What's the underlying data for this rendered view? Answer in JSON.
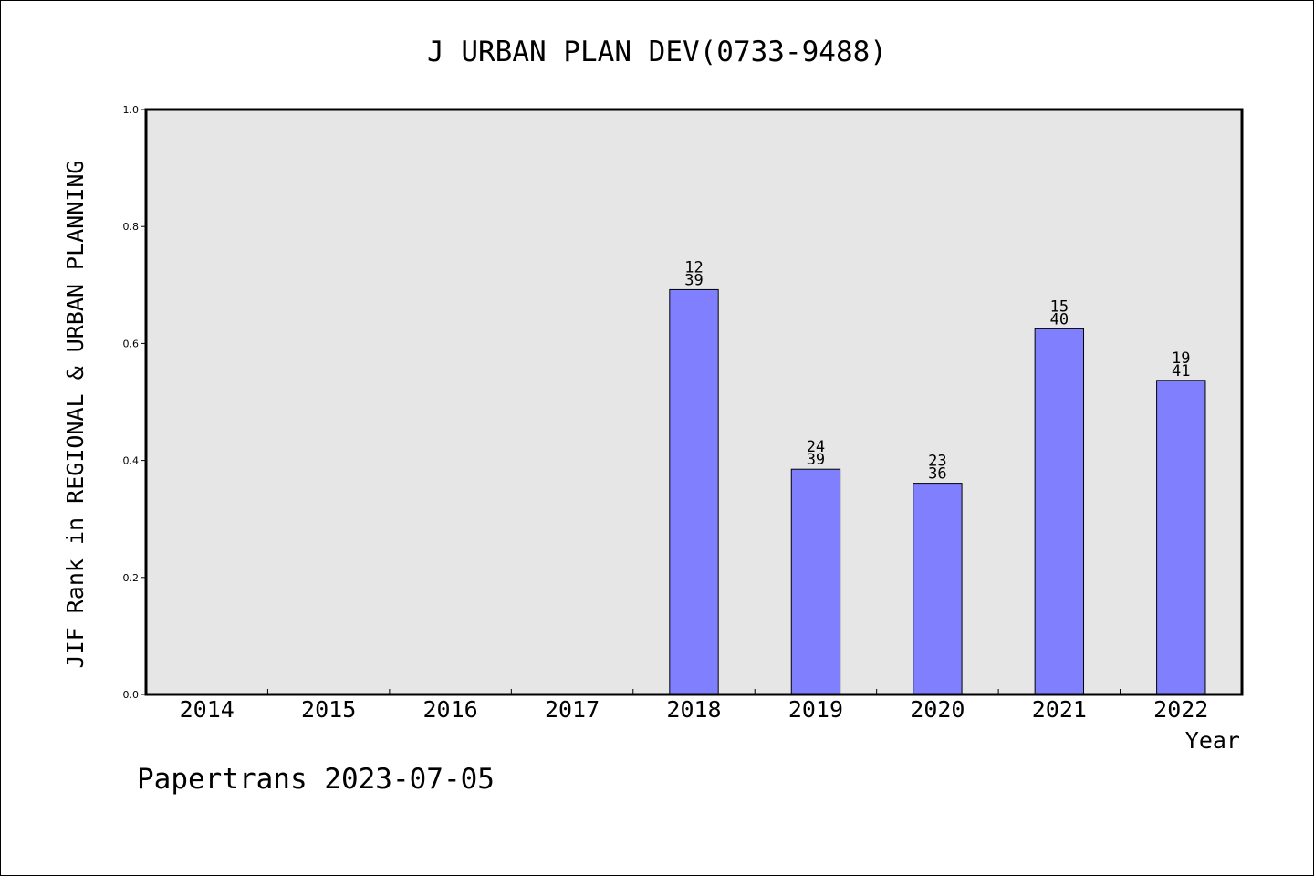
{
  "chart_data": {
    "type": "bar",
    "title": "J URBAN PLAN DEV(0733-9488)",
    "xlabel": "Year",
    "ylabel": "JIF Rank in REGIONAL & URBAN PLANNING",
    "ylim": [
      0,
      1.0
    ],
    "yticks": [
      "0.0",
      "0.2",
      "0.4",
      "0.6",
      "0.8",
      "1.0"
    ],
    "categories": [
      "2014",
      "2015",
      "2016",
      "2017",
      "2018",
      "2019",
      "2020",
      "2021",
      "2022"
    ],
    "values": [
      null,
      null,
      null,
      null,
      0.692,
      0.385,
      0.361,
      0.625,
      0.537
    ],
    "ranks": [
      null,
      null,
      null,
      null,
      "12",
      "24",
      "23",
      "15",
      "19"
    ],
    "totals": [
      null,
      null,
      null,
      null,
      "39",
      "39",
      "36",
      "40",
      "41"
    ],
    "grid": false,
    "plot_background": "#e6e6e6",
    "bar_color": "#8080ff",
    "bar_outline_color": "#000000"
  },
  "footer": {
    "credit": "Papertrans 2023-07-05"
  }
}
